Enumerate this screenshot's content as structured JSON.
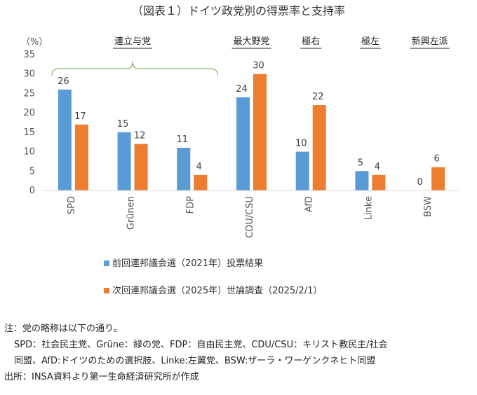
{
  "chart_data": {
    "type": "bar",
    "title": "（図表１）ドイツ政党別の得票率と支持率",
    "ylabel": "（%）",
    "ylim": [
      0,
      35
    ],
    "yticks": [
      0,
      5,
      10,
      15,
      20,
      25,
      30,
      35
    ],
    "categories": [
      "SPD",
      "Grünen",
      "FDP",
      "CDU/CSU",
      "AfD",
      "Linke",
      "BSW"
    ],
    "series": [
      {
        "name": "前回連邦議会選（2021年）投票結果",
        "color": "#5B9BD5",
        "values": [
          26,
          15,
          11,
          24,
          10,
          5,
          0
        ]
      },
      {
        "name": "次回連邦議会選（2025年）世論調査（2025/2/1）",
        "color": "#ED7D31",
        "values": [
          17,
          12,
          4,
          30,
          22,
          4,
          6
        ]
      }
    ],
    "group_labels": [
      {
        "label": "連立与党",
        "from": 0,
        "to": 2,
        "bracket": true
      },
      {
        "label": "最大野党",
        "from": 3,
        "to": 3
      },
      {
        "label": "極右",
        "from": 4,
        "to": 4
      },
      {
        "label": "極左",
        "from": 5,
        "to": 5
      },
      {
        "label": "新興左派",
        "from": 6,
        "to": 6
      }
    ],
    "legend_position": "bottom",
    "grid": false
  },
  "notes": {
    "line1": "注：党の略称は以下の通り。",
    "line2": "SPD：社会民主党、Grüne：緑の党、FDP：自由民主党、CDU/CSU：キリスト教民主/社会",
    "line3": "同盟、AfD:ドイツのための選択肢、Linke:左翼党、BSW:ザーラ・ワーゲンクネヒト同盟",
    "source": "出所：INSA資料より第一生命経済研究所が作成"
  }
}
